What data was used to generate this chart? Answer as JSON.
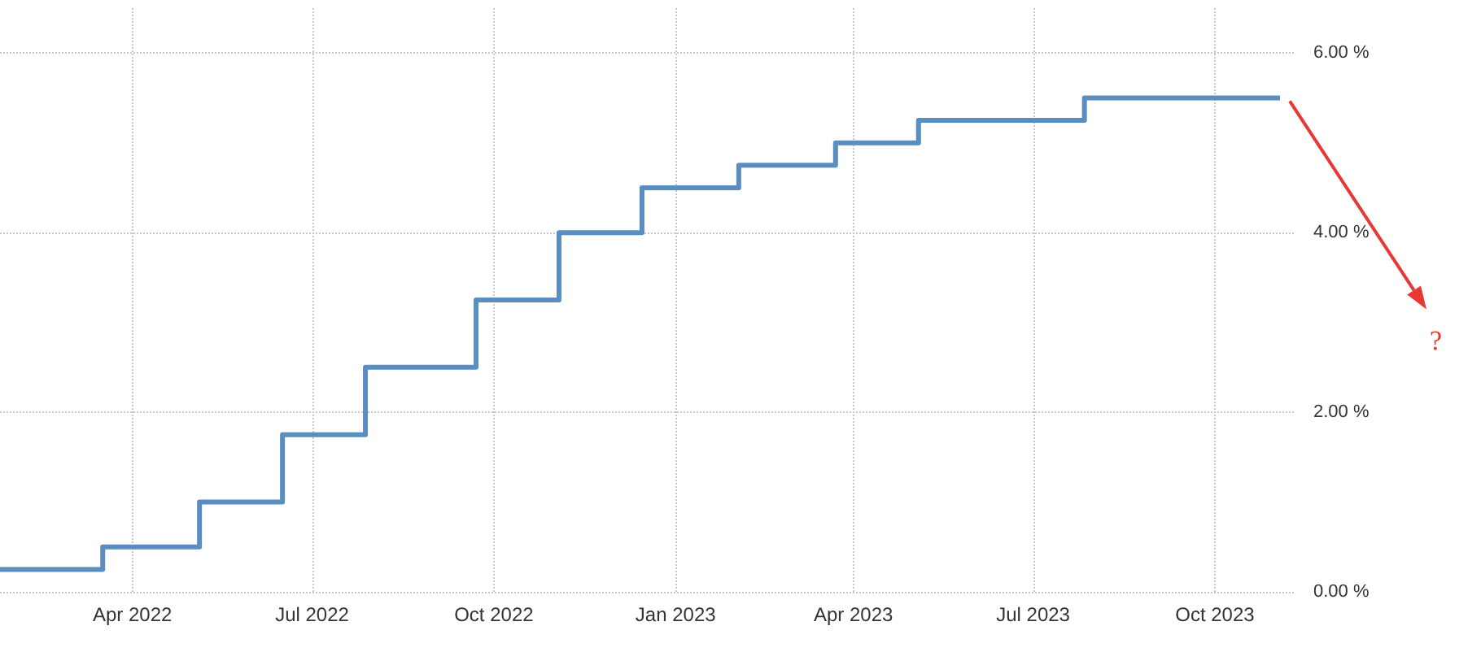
{
  "chart_data": {
    "type": "step",
    "x": [
      "2022-01-24",
      "2022-03-17",
      "2022-05-05",
      "2022-06-16",
      "2022-07-28",
      "2022-09-22",
      "2022-11-03",
      "2022-12-15",
      "2023-02-02",
      "2023-03-23",
      "2023-05-04",
      "2023-07-27",
      "2023-11-03"
    ],
    "series": [
      {
        "color": "#5b8ec0",
        "values": [
          0.25,
          0.5,
          1.0,
          1.75,
          2.5,
          3.25,
          4.0,
          4.5,
          4.75,
          5.0,
          5.25,
          5.5,
          5.5
        ]
      }
    ],
    "xlim": [
      "2022-01-24",
      "2023-11-10"
    ],
    "xticks": [
      {
        "value": "2022-04-01",
        "label": "Apr 2022"
      },
      {
        "value": "2022-07-01",
        "label": "Jul 2022"
      },
      {
        "value": "2022-10-01",
        "label": "Oct 2022"
      },
      {
        "value": "2023-01-01",
        "label": "Jan 2023"
      },
      {
        "value": "2023-04-01",
        "label": "Apr 2023"
      },
      {
        "value": "2023-07-01",
        "label": "Jul 2023"
      },
      {
        "value": "2023-10-01",
        "label": "Oct 2023"
      }
    ],
    "ylim": [
      0,
      6.5
    ],
    "yticks": [
      {
        "value": 0,
        "label": "0.00 %"
      },
      {
        "value": 2,
        "label": "2.00 %"
      },
      {
        "value": 4,
        "label": "4.00 %"
      },
      {
        "value": 6,
        "label": "6.00 %"
      }
    ],
    "grid": true,
    "marker": "none",
    "line_style": "solid",
    "annotations": [
      "?"
    ]
  }
}
